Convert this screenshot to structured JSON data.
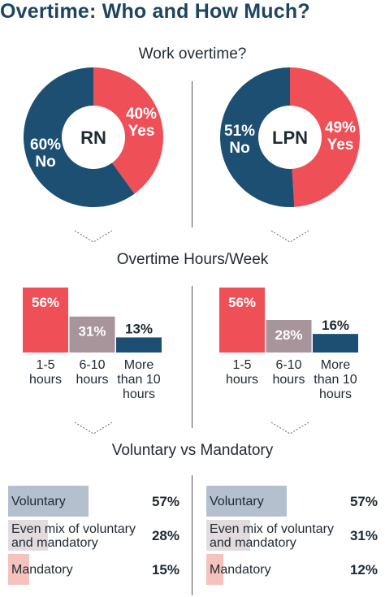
{
  "title": "Overtime: Who and How Much?",
  "sections": {
    "work_overtime": "Work overtime?",
    "hours_per_week": "Overtime Hours/Week",
    "voluntary_vs_mandatory": "Voluntary vs Mandatory"
  },
  "colors": {
    "yes": "#ef4f56",
    "no": "#1d4f73",
    "mid": "#a8949b",
    "title": "#1d4560"
  },
  "chart_data": [
    {
      "type": "pie",
      "id": "rn-overtime",
      "center_label": "RN",
      "slices": [
        {
          "label": "Yes",
          "value": 40,
          "value_label": "40%",
          "color": "#ef4f56"
        },
        {
          "label": "No",
          "value": 60,
          "value_label": "60%",
          "color": "#1d4f73"
        }
      ]
    },
    {
      "type": "pie",
      "id": "lpn-overtime",
      "center_label": "LPN",
      "slices": [
        {
          "label": "Yes",
          "value": 49,
          "value_label": "49%",
          "color": "#ef4f56"
        },
        {
          "label": "No",
          "value": 51,
          "value_label": "51%",
          "color": "#1d4f73"
        }
      ]
    },
    {
      "type": "bar",
      "id": "rn-hours",
      "categories": [
        "1-5\nhours",
        "6-10\nhours",
        "More\nthan 10\nhours"
      ],
      "values": [
        56,
        31,
        13
      ],
      "value_labels": [
        "56%",
        "31%",
        "13%"
      ],
      "colors": [
        "#ef4f56",
        "#a8949b",
        "#1d4f73"
      ],
      "ylim": [
        0,
        56
      ]
    },
    {
      "type": "bar",
      "id": "lpn-hours",
      "categories": [
        "1-5\nhours",
        "6-10\nhours",
        "More\nthan 10\nhours"
      ],
      "values": [
        56,
        28,
        16
      ],
      "value_labels": [
        "56%",
        "28%",
        "16%"
      ],
      "colors": [
        "#ef4f56",
        "#a8949b",
        "#1d4f73"
      ],
      "ylim": [
        0,
        56
      ]
    },
    {
      "type": "bar",
      "id": "rn-voluntary",
      "orientation": "horizontal",
      "categories": [
        "Voluntary",
        "Even mix of voluntary\nand mandatory",
        "Mandatory"
      ],
      "values": [
        57,
        28,
        15
      ],
      "value_labels": [
        "57%",
        "28%",
        "15%"
      ],
      "colors": [
        "#b5c0cf",
        "#e3dcdf",
        "#f6c2bd"
      ],
      "xlim": [
        0,
        62
      ]
    },
    {
      "type": "bar",
      "id": "lpn-voluntary",
      "orientation": "horizontal",
      "categories": [
        "Voluntary",
        "Even mix of voluntary\nand mandatory",
        "Mandatory"
      ],
      "values": [
        57,
        31,
        12
      ],
      "value_labels": [
        "57%",
        "31%",
        "12%"
      ],
      "colors": [
        "#b5c0cf",
        "#e3dcdf",
        "#f6c2bd"
      ],
      "xlim": [
        0,
        62
      ]
    }
  ]
}
